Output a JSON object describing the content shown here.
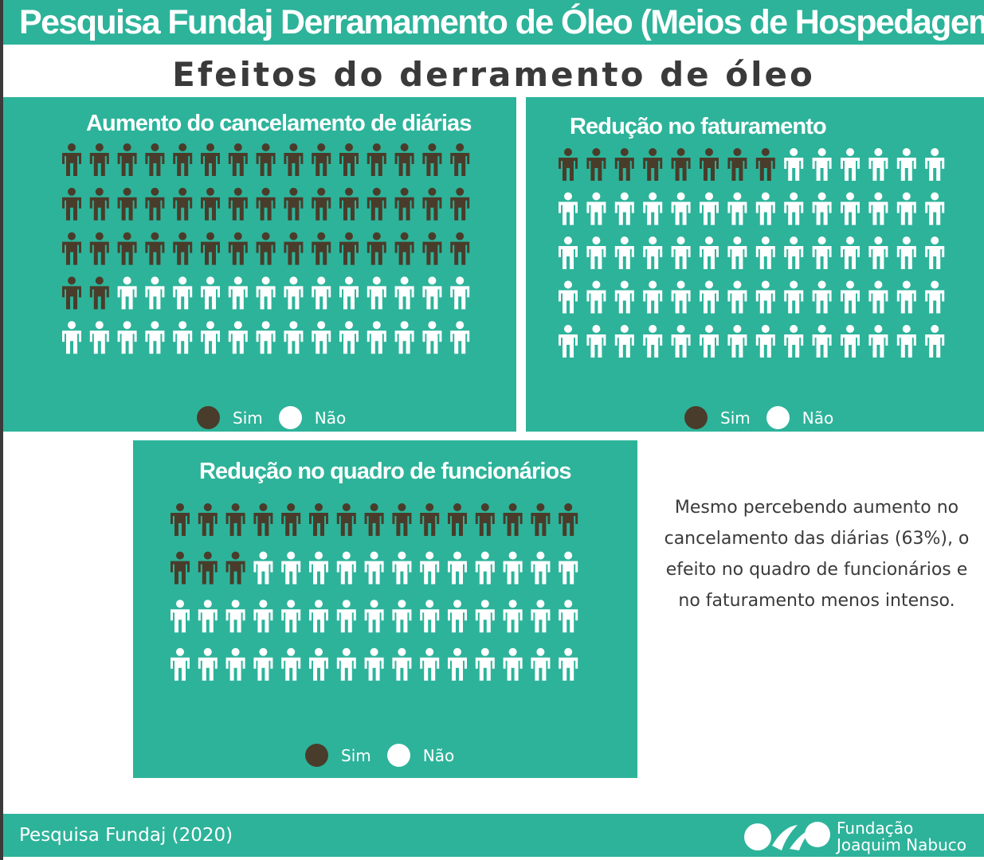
{
  "header": {
    "title": "Pesquisa Fundaj Derramamento de Óleo (Meios de Hospedagem)"
  },
  "subtitle": "Efeitos do derramento de óleo",
  "colors": {
    "accent": "#2db39a",
    "yes": "#4a3c2a",
    "no": "#ffffff",
    "text": "#3a3a3a"
  },
  "legend": {
    "yes_label": "Sim",
    "no_label": "Não"
  },
  "chart_data": [
    {
      "type": "pictogram",
      "title": "Aumento do cancelamento de diárias",
      "icon": "person-icon",
      "rows": 5,
      "cols": 15,
      "values": {
        "Sim": 47,
        "Não": 28
      }
    },
    {
      "type": "pictogram",
      "title": "Redução no faturamento",
      "icon": "person-icon",
      "rows": 5,
      "cols": 14,
      "values": {
        "Sim": 8,
        "Não": 62
      }
    },
    {
      "type": "pictogram",
      "title": "Redução no quadro de funcionários",
      "icon": "person-icon",
      "rows": 4,
      "cols": 15,
      "values": {
        "Sim": 18,
        "Não": 42
      }
    }
  ],
  "note": "Mesmo percebendo aumento no cancelamento das diárias (63%), o efeito no quadro de funcionários e no faturamento menos intenso.",
  "footer": {
    "source": "Pesquisa Fundaj (2020)",
    "logo_line1": "Fundação",
    "logo_line2": "Joaquim Nabuco"
  }
}
